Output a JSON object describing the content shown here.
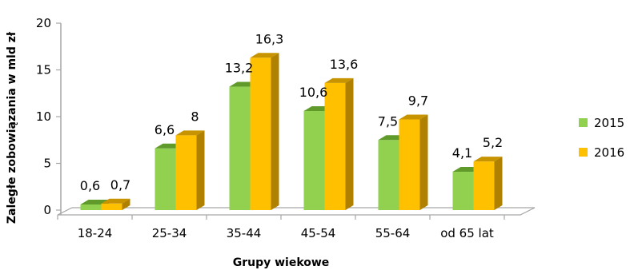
{
  "chart_data": {
    "type": "bar",
    "categories": [
      "18-24",
      "25-34",
      "35-44",
      "45-54",
      "55-64",
      "od 65 lat"
    ],
    "series": [
      {
        "name": "2015",
        "values": [
          0.6,
          6.6,
          13.2,
          10.6,
          7.5,
          4.1
        ],
        "labels": [
          "0,6",
          "6,6",
          "13,2",
          "10,6",
          "7,5",
          "4,1"
        ]
      },
      {
        "name": "2016",
        "values": [
          0.7,
          8,
          16.3,
          13.6,
          9.7,
          5.2
        ],
        "labels": [
          "0,7",
          "8",
          "16,3",
          "13,6",
          "9,7",
          "5,2"
        ]
      }
    ],
    "yticks": [
      0,
      5,
      10,
      15,
      20
    ],
    "ylim": [
      0,
      20
    ],
    "xlabel": "Grupy wiekowe",
    "ylabel": "Zaległe zobowiązania w mld zł",
    "legend_position": "right",
    "grid": false,
    "style": "3d-clustered-column",
    "colors": {
      "2015": {
        "front": "#92D050",
        "top": "#5f9a2a",
        "side": "#4e8a22"
      },
      "2016": {
        "front": "#FFC000",
        "top": "#c79400",
        "side": "#b08000"
      },
      "axis": "#a6a6a6",
      "floor_fill": "#ffffff"
    }
  }
}
